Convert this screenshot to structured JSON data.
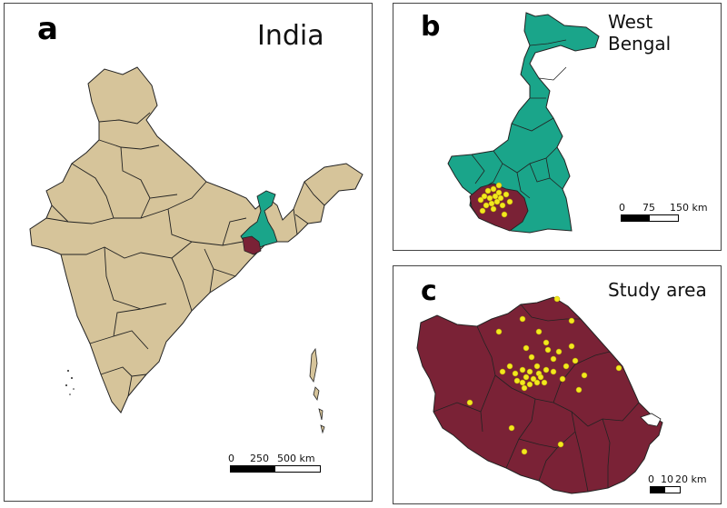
{
  "panels": {
    "a": {
      "letter": "a",
      "title": "India",
      "scale": {
        "ticks": [
          "0",
          "250",
          "500 km"
        ]
      }
    },
    "b": {
      "letter": "b",
      "title": "West Bengal",
      "scale": {
        "ticks": [
          "0",
          "75",
          "150 km"
        ]
      }
    },
    "c": {
      "letter": "c",
      "title": "Study area",
      "scale": {
        "ticks": [
          "0",
          "10",
          "20 km"
        ]
      }
    }
  },
  "colors": {
    "india_fill": "#d6c49a",
    "west_bengal_fill": "#1aa58a",
    "study_area_fill": "#7a2236",
    "sample_point": "#f3e81e",
    "boundary": "#222222"
  },
  "legend_semantics": {
    "sample_points_icon": "yellow-circle-icon"
  }
}
